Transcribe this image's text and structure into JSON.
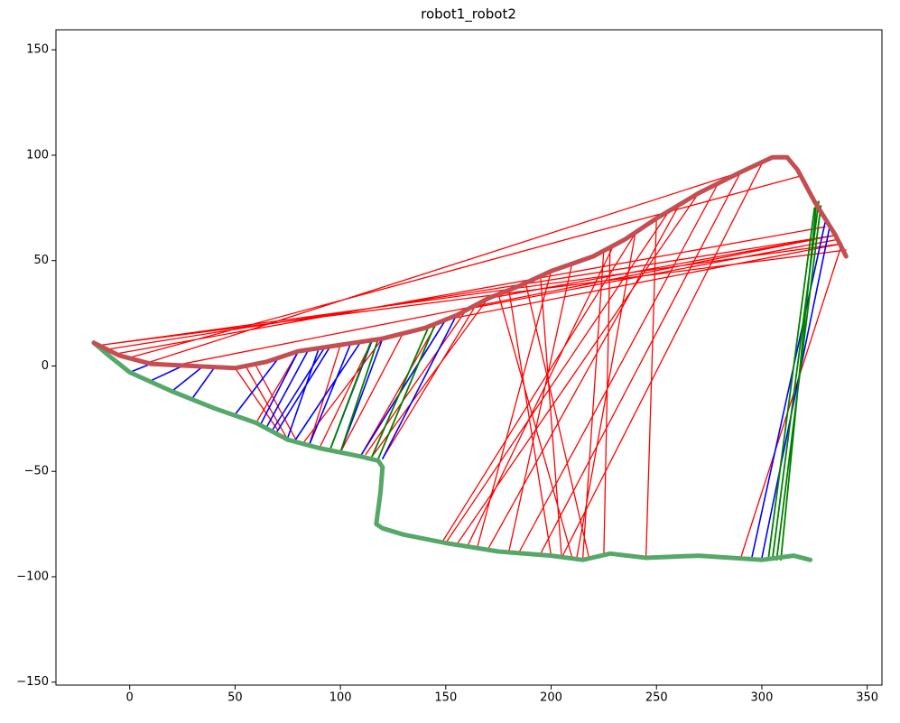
{
  "chart_data": {
    "type": "line",
    "title": "robot1_robot2",
    "xlim": [
      -35,
      357
    ],
    "ylim": [
      -151.4,
      159.5
    ],
    "xticks": [
      0,
      50,
      100,
      150,
      200,
      250,
      300,
      350
    ],
    "yticks": [
      {
        "value": -150,
        "label": "−150"
      },
      {
        "value": -100,
        "label": "−100"
      },
      {
        "value": -50,
        "label": "−50"
      },
      0,
      50,
      100,
      150
    ],
    "series": [
      {
        "color": "#ff0000",
        "linewidth": 1.3,
        "x": [
          -13,
          340,
          null,
          -13,
          338,
          null,
          -10,
          335,
          null,
          -5,
          330,
          null,
          0,
          318,
          null,
          10,
          290,
          null,
          20,
          325,
          null,
          80,
          60,
          null,
          70,
          50,
          null,
          85,
          100,
          null,
          110,
          150,
          null,
          112,
          160,
          null,
          115,
          170,
          null,
          120,
          165,
          null,
          148,
          240,
          null,
          150,
          255,
          null,
          155,
          270,
          null,
          160,
          230,
          null,
          165,
          200,
          null,
          170,
          260,
          null,
          180,
          210,
          null,
          185,
          280,
          null,
          195,
          290,
          null,
          200,
          180,
          null,
          205,
          195,
          null,
          210,
          175,
          null,
          212,
          240,
          null,
          215,
          225,
          null,
          218,
          188,
          null,
          225,
          228,
          null,
          245,
          250,
          null,
          290,
          338,
          null,
          205,
          300,
          null,
          60,
          80,
          null,
          75,
          55,
          null,
          90,
          115,
          null,
          100,
          130,
          null,
          150,
          338,
          null,
          160,
          336,
          null,
          170,
          335,
          null,
          110,
          145,
          null,
          82,
          120
        ],
        "values": [
          10,
          55,
          null,
          10,
          58,
          null,
          8,
          62,
          null,
          6,
          66,
          null,
          4,
          90,
          null,
          2,
          92,
          null,
          0,
          60,
          null,
          -37,
          0,
          null,
          -30,
          -1,
          null,
          -38,
          10,
          null,
          -42,
          22,
          null,
          -42,
          27,
          null,
          -43,
          32,
          null,
          -44,
          30,
          null,
          -84,
          63,
          null,
          -84,
          72,
          null,
          -85,
          82,
          null,
          -86,
          58,
          null,
          -86,
          45,
          null,
          -87,
          75,
          null,
          -88,
          49,
          null,
          -88,
          88,
          null,
          -89,
          92,
          null,
          -90,
          36,
          null,
          -91,
          42,
          null,
          -91,
          34,
          null,
          -92,
          63,
          null,
          -92,
          55,
          null,
          -91,
          39,
          null,
          -90,
          57,
          null,
          -91,
          70,
          null,
          -91,
          58,
          null,
          -91,
          96,
          null,
          -27,
          7,
          null,
          -35,
          0,
          null,
          -39,
          12,
          null,
          -41,
          16,
          null,
          22,
          58,
          null,
          27,
          60,
          null,
          32,
          62,
          null,
          -42,
          19,
          null,
          -37,
          13
        ]
      },
      {
        "color": "#0000ff",
        "linewidth": 1.6,
        "x": [
          0,
          10,
          null,
          10,
          25,
          null,
          20,
          35,
          null,
          30,
          40,
          null,
          50,
          70,
          null,
          62,
          80,
          null,
          65,
          85,
          null,
          70,
          95,
          null,
          75,
          90,
          null,
          85,
          105,
          null,
          95,
          115,
          null,
          100,
          120,
          null,
          110,
          150,
          null,
          120,
          155,
          null,
          295,
          330,
          null,
          300,
          332,
          null,
          68,
          92,
          null,
          78,
          110
        ],
        "values": [
          -3,
          1,
          null,
          -7,
          0,
          null,
          -12,
          0,
          null,
          -15,
          -1,
          null,
          -23,
          3,
          null,
          -28,
          7,
          null,
          -29,
          8,
          null,
          -31,
          9,
          null,
          -34,
          9,
          null,
          -38,
          11,
          null,
          -40,
          12,
          null,
          -41,
          13,
          null,
          -42,
          22,
          null,
          -44,
          24,
          null,
          -92,
          68,
          null,
          -91,
          65,
          null,
          -30,
          8,
          null,
          -36,
          12
        ]
      },
      {
        "color": "#008000",
        "linewidth": 1.8,
        "x": [
          95,
          115,
          null,
          100,
          118,
          null,
          115,
          142,
          null,
          118,
          145,
          null,
          305,
          327,
          null,
          307,
          328,
          null,
          309,
          326,
          null,
          303,
          325
        ],
        "values": [
          -40,
          13,
          null,
          -41,
          13,
          null,
          -43,
          19,
          null,
          -44,
          20,
          null,
          -92,
          78,
          null,
          -92,
          76,
          null,
          -92,
          78,
          null,
          -92,
          75
        ]
      },
      {
        "color": "#55a868",
        "linewidth": 5,
        "x": [
          -17,
          -10,
          0,
          20,
          40,
          60,
          75,
          90,
          110,
          118,
          120,
          119,
          117,
          120,
          130,
          150,
          175,
          200,
          215,
          228,
          245,
          270,
          300,
          315,
          323
        ],
        "values": [
          11,
          5,
          -3,
          -12,
          -20,
          -27,
          -35,
          -39,
          -43,
          -45,
          -48,
          -60,
          -75,
          -77,
          -80,
          -84,
          -88,
          -90,
          -92,
          -89,
          -91,
          -90,
          -92,
          -90,
          -92
        ]
      },
      {
        "color": "#c44e52",
        "linewidth": 5,
        "x": [
          -17,
          -5,
          10,
          30,
          50,
          65,
          80,
          100,
          120,
          140,
          155,
          170,
          185,
          200,
          220,
          235,
          250,
          270,
          290,
          305,
          312,
          317,
          325,
          335,
          340
        ],
        "values": [
          11,
          5,
          1,
          0,
          -1,
          2,
          7,
          10,
          13,
          18,
          24,
          32,
          38,
          45,
          52,
          60,
          70,
          82,
          92,
          99,
          99,
          93,
          78,
          62,
          52
        ]
      }
    ]
  }
}
